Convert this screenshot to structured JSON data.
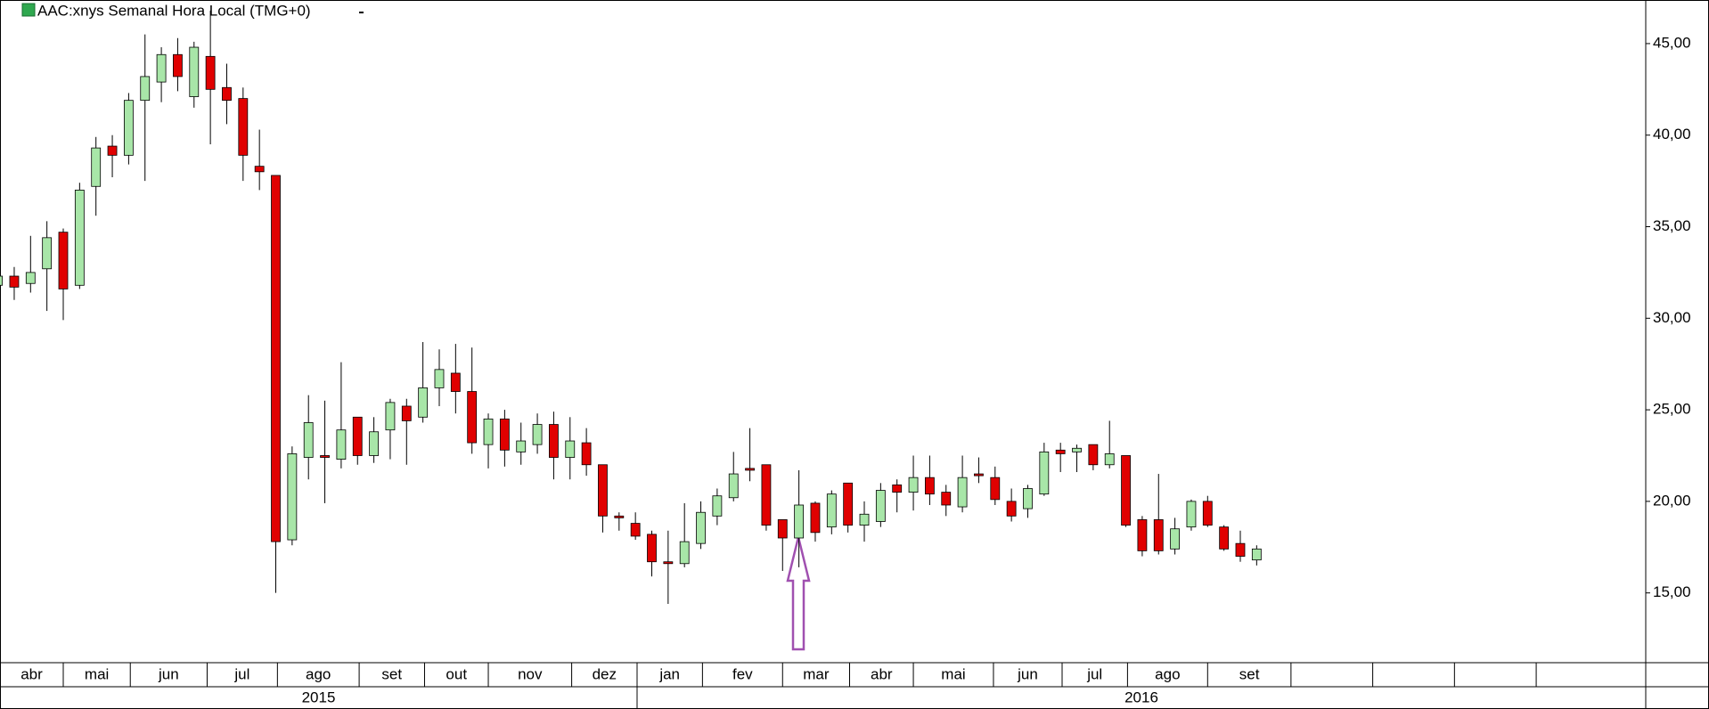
{
  "chart_data": {
    "type": "candlestick",
    "title": "AAC:xnys Semanal Hora Local (TMG+0)",
    "open": [
      31.8,
      32.3,
      31.9,
      32.7,
      34.7,
      31.8,
      37.2,
      39.4,
      38.9,
      41.9,
      42.9,
      44.4,
      42.1,
      44.3,
      42.6,
      42.0,
      38.3,
      37.8,
      17.9,
      22.4,
      22.5,
      22.3,
      24.6,
      22.5,
      23.9,
      25.2,
      24.6,
      26.2,
      27.0,
      26.0,
      23.1,
      24.5,
      22.7,
      23.1,
      24.2,
      22.4,
      23.2,
      22.0,
      19.2,
      18.8,
      18.2,
      16.7,
      16.6,
      17.7,
      19.2,
      20.2,
      21.8,
      22.0,
      19.0,
      18.0,
      19.9,
      18.6,
      21.0,
      18.7,
      18.9,
      20.9,
      20.5,
      21.3,
      20.5,
      19.7,
      21.5,
      21.3,
      20.0,
      19.6,
      20.4,
      22.8,
      22.7,
      23.1,
      22.0,
      22.5,
      19.0,
      19.0,
      17.4,
      18.6,
      20.0,
      18.6,
      17.7,
      16.8
    ],
    "high": [
      32.4,
      32.8,
      34.5,
      35.3,
      34.9,
      37.4,
      39.9,
      40.0,
      42.3,
      45.5,
      44.8,
      45.3,
      45.1,
      46.8,
      43.9,
      42.6,
      40.3,
      37.8,
      23.0,
      25.8,
      25.5,
      27.6,
      24.6,
      24.6,
      25.6,
      25.6,
      28.7,
      28.3,
      28.6,
      28.4,
      24.8,
      25.0,
      24.3,
      24.8,
      24.9,
      24.6,
      24.0,
      22.0,
      19.4,
      19.4,
      18.4,
      18.4,
      19.9,
      20.0,
      20.7,
      22.7,
      24.0,
      22.0,
      19.0,
      21.7,
      20.0,
      20.6,
      21.0,
      20.0,
      21.0,
      21.2,
      22.5,
      22.5,
      20.9,
      22.5,
      22.4,
      21.9,
      20.7,
      20.9,
      23.2,
      23.2,
      23.1,
      23.1,
      24.4,
      22.5,
      19.2,
      21.5,
      19.1,
      20.1,
      20.3,
      18.7,
      18.4,
      17.6
    ],
    "low": [
      30.8,
      31.0,
      31.4,
      30.4,
      29.9,
      31.6,
      35.6,
      37.7,
      38.4,
      37.5,
      41.8,
      42.4,
      41.5,
      39.5,
      40.6,
      37.5,
      37.0,
      15.0,
      17.6,
      21.2,
      19.9,
      21.8,
      22.0,
      22.1,
      22.3,
      22.0,
      24.3,
      25.2,
      24.8,
      22.6,
      21.8,
      21.9,
      22.0,
      22.6,
      21.2,
      21.2,
      21.4,
      18.3,
      18.4,
      17.9,
      15.9,
      14.4,
      16.4,
      17.4,
      18.7,
      20.0,
      21.1,
      18.4,
      16.2,
      16.4,
      17.8,
      18.2,
      18.3,
      17.8,
      18.6,
      19.4,
      19.5,
      19.8,
      19.2,
      19.4,
      21.0,
      19.8,
      18.9,
      19.1,
      20.3,
      21.6,
      21.6,
      21.7,
      21.8,
      18.6,
      17.0,
      17.1,
      17.1,
      18.4,
      18.6,
      17.3,
      16.7,
      16.5
    ],
    "close": [
      32.3,
      31.7,
      32.5,
      34.4,
      31.6,
      37.0,
      39.3,
      38.9,
      41.9,
      43.2,
      44.4,
      43.2,
      44.8,
      42.5,
      41.9,
      38.9,
      38.0,
      17.8,
      22.6,
      24.3,
      22.4,
      23.9,
      22.5,
      23.8,
      25.4,
      24.4,
      26.2,
      27.2,
      26.0,
      23.2,
      24.5,
      22.8,
      23.3,
      24.2,
      22.4,
      23.3,
      22.0,
      19.2,
      19.1,
      18.1,
      16.7,
      16.6,
      17.8,
      19.4,
      20.3,
      21.5,
      21.7,
      18.7,
      18.0,
      19.8,
      18.3,
      20.4,
      18.7,
      19.3,
      20.6,
      20.5,
      21.3,
      20.4,
      19.8,
      21.3,
      21.4,
      20.1,
      19.2,
      20.7,
      22.7,
      22.6,
      22.9,
      22.0,
      22.6,
      18.7,
      17.3,
      17.3,
      18.5,
      20.0,
      18.7,
      17.4,
      17.0,
      17.4
    ],
    "up_color": "#a8e6a8",
    "down_color": "#e00000",
    "ylim": [
      11.19,
      47.38
    ],
    "yticks": [
      {
        "value": 15,
        "label": "15,00"
      },
      {
        "value": 20,
        "label": "20,00"
      },
      {
        "value": 25,
        "label": "25,00"
      },
      {
        "value": 30,
        "label": "30,00"
      },
      {
        "value": 35,
        "label": "35,00"
      },
      {
        "value": 40,
        "label": "40,00"
      },
      {
        "value": 45,
        "label": "45,00"
      }
    ],
    "xlim": [
      0.13,
      100.8
    ],
    "xticks": [
      {
        "value": 0.13,
        "label": "abr"
      },
      {
        "value": 4,
        "label": "mai"
      },
      {
        "value": 8.1,
        "label": "jun"
      },
      {
        "value": 12.8,
        "label": "jul"
      },
      {
        "value": 17.1,
        "label": "ago"
      },
      {
        "value": 22.1,
        "label": "set"
      },
      {
        "value": 26.1,
        "label": "out"
      },
      {
        "value": 30,
        "label": "nov"
      },
      {
        "value": 35.1,
        "label": "dez"
      },
      {
        "value": 39.1,
        "label": "jan"
      },
      {
        "value": 43.1,
        "label": "fev"
      },
      {
        "value": 48,
        "label": "mar"
      },
      {
        "value": 52.1,
        "label": "abr"
      },
      {
        "value": 56,
        "label": "mai"
      },
      {
        "value": 60.9,
        "label": "jun"
      },
      {
        "value": 65.1,
        "label": "jul"
      },
      {
        "value": 69.1,
        "label": "ago"
      },
      {
        "value": 74,
        "label": "set"
      },
      {
        "value": 79.1,
        "label": null
      },
      {
        "value": 84.1,
        "label": null
      },
      {
        "value": 89.1,
        "label": null
      },
      {
        "value": 94.1,
        "label": null
      }
    ],
    "year_ticks": [
      {
        "value": 0.13,
        "label": "2015"
      },
      {
        "value": 39.1,
        "label": "2016"
      }
    ]
  }
}
